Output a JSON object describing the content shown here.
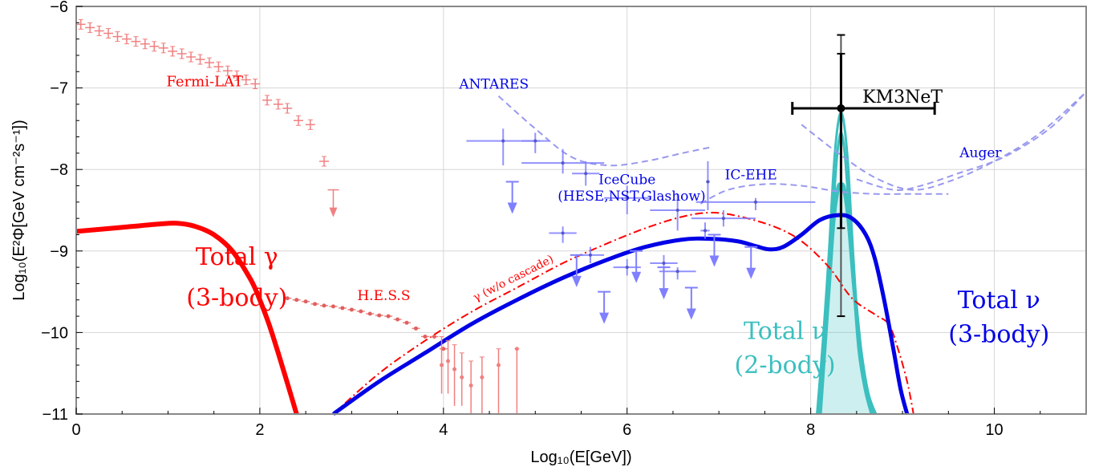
{
  "chart_data": {
    "type": "line",
    "xlabel": "Log₁₀(E[GeV])",
    "ylabel": "Log₁₀(E²Φ[GeV cm⁻²s⁻¹])",
    "xlim": [
      0,
      11
    ],
    "ylim": [
      -11,
      -6
    ],
    "x_ticks": [
      "0",
      "2",
      "4",
      "6",
      "8",
      "10"
    ],
    "y_ticks": [
      "−6",
      "−7",
      "−8",
      "−9",
      "−10",
      "−11"
    ],
    "grid": true,
    "colors": {
      "gamma": "#ff0000",
      "nu3": "#0000e6",
      "nu2": "#3cbfbf",
      "fermi": "#f08080",
      "neutrino_data": "#7f7fff",
      "limits": "#9999ee",
      "km3net": "#000000"
    },
    "annotations": [
      {
        "id": "fermi",
        "text": "Fermi-LAT",
        "x": 1.4,
        "y": -6.98
      },
      {
        "id": "hess",
        "text": "H.E.S.S",
        "x": 3.35,
        "y": -9.6
      },
      {
        "id": "antares",
        "text": "ANTARES",
        "x": 4.55,
        "y": -7.01
      },
      {
        "id": "icecube1",
        "text": "IceCube",
        "x": 6.0,
        "y": -8.18
      },
      {
        "id": "icecube2",
        "text": "(HESE,NST,Glashow)",
        "x": 6.05,
        "y": -8.38
      },
      {
        "id": "icehe",
        "text": "IC-EHE",
        "x": 7.35,
        "y": -8.12
      },
      {
        "id": "auger",
        "text": "Auger",
        "x": 9.85,
        "y": -7.85
      },
      {
        "id": "km3net",
        "text": "KM3NeT",
        "x": 9.0,
        "y": -7.18
      },
      {
        "id": "gcascade",
        "text": "γ (w/o cascade)",
        "x": 4.35,
        "y": -9.62
      },
      {
        "id": "tg1",
        "text": "Total γ",
        "x": 1.75,
        "y": -9.17
      },
      {
        "id": "tg2",
        "text": "(3-body)",
        "x": 1.75,
        "y": -9.67
      },
      {
        "id": "tn31",
        "text": "Total ν",
        "x": 10.05,
        "y": -9.7
      },
      {
        "id": "tn32",
        "text": "(3-body)",
        "x": 10.05,
        "y": -10.12
      },
      {
        "id": "tn21",
        "text": "Total ν",
        "x": 7.72,
        "y": -10.08
      },
      {
        "id": "tn22",
        "text": "(2-body)",
        "x": 7.72,
        "y": -10.5
      }
    ],
    "series": [
      {
        "id": "total_gamma_3body",
        "x": [
          0,
          0.3,
          0.6,
          0.9,
          1.1,
          1.3,
          1.5,
          1.7,
          1.9,
          2.0,
          2.1,
          2.2,
          2.3,
          2.4
        ],
        "y": [
          -8.76,
          -8.73,
          -8.7,
          -8.67,
          -8.66,
          -8.7,
          -8.8,
          -9.0,
          -9.35,
          -9.6,
          -9.9,
          -10.25,
          -10.62,
          -11.0
        ]
      },
      {
        "id": "total_nu_3body",
        "x": [
          2.8,
          3.3,
          3.8,
          4.3,
          4.8,
          5.3,
          5.8,
          6.2,
          6.6,
          6.9,
          7.2,
          7.4,
          7.55,
          7.7,
          7.9,
          8.1,
          8.3,
          8.45,
          8.6,
          8.7,
          8.8,
          8.9,
          8.98,
          9.05
        ],
        "y": [
          -11.0,
          -10.6,
          -10.25,
          -9.9,
          -9.6,
          -9.33,
          -9.1,
          -8.95,
          -8.86,
          -8.85,
          -8.88,
          -8.94,
          -8.98,
          -8.95,
          -8.8,
          -8.62,
          -8.56,
          -8.6,
          -8.8,
          -9.1,
          -9.6,
          -10.2,
          -10.7,
          -11.0
        ]
      },
      {
        "id": "gamma_wo_cascade",
        "x": [
          2.8,
          3.3,
          3.8,
          4.3,
          4.8,
          5.3,
          5.8,
          6.2,
          6.6,
          6.9,
          7.2,
          7.6,
          7.9,
          8.2,
          8.45,
          8.7,
          8.85,
          8.95,
          9.05,
          9.12
        ],
        "y": [
          -11.0,
          -10.5,
          -10.1,
          -9.75,
          -9.45,
          -9.15,
          -8.9,
          -8.72,
          -8.58,
          -8.53,
          -8.57,
          -8.7,
          -8.88,
          -9.2,
          -9.58,
          -9.78,
          -9.9,
          -10.2,
          -10.6,
          -11.0
        ]
      },
      {
        "id": "total_nu_2body",
        "x": [
          8.1,
          8.15,
          8.2,
          8.25,
          8.3,
          8.33,
          8.36,
          8.41,
          8.47,
          8.54,
          8.62,
          8.7
        ],
        "y": [
          -11.0,
          -10.2,
          -9.4,
          -8.6,
          -8.22,
          -8.2,
          -8.22,
          -8.6,
          -9.4,
          -10.2,
          -10.75,
          -11.0
        ]
      },
      {
        "id": "antares_limit",
        "x": [
          4.6,
          5.0,
          5.4,
          5.8,
          6.2,
          6.6,
          6.9
        ],
        "y": [
          -7.1,
          -7.5,
          -7.85,
          -7.95,
          -7.9,
          -7.8,
          -7.73
        ]
      },
      {
        "id": "ic_ehe_limit",
        "x": [
          6.8,
          7.1,
          7.5,
          7.9,
          8.3,
          8.7,
          9.1,
          9.5
        ],
        "y": [
          -8.42,
          -8.25,
          -8.18,
          -8.2,
          -8.27,
          -8.3,
          -8.3,
          -8.3
        ]
      },
      {
        "id": "auger_limit",
        "x": [
          7.9,
          8.3,
          8.7,
          9.1,
          9.5,
          10.0,
          10.5,
          11.0
        ],
        "y": [
          -7.45,
          -7.8,
          -8.1,
          -8.25,
          -8.15,
          -7.9,
          -7.55,
          -7.05
        ]
      },
      {
        "id": "auger_limit_2",
        "x": [
          8.5,
          8.9,
          9.2,
          9.6,
          10.1,
          10.6,
          11.0
        ],
        "y": [
          -8.12,
          -8.25,
          -8.2,
          -8.05,
          -7.85,
          -7.5,
          -7.05
        ]
      }
    ],
    "fermi_points": [
      {
        "x": 0.05,
        "y": -6.22
      },
      {
        "x": 0.15,
        "y": -6.26
      },
      {
        "x": 0.25,
        "y": -6.3
      },
      {
        "x": 0.35,
        "y": -6.33
      },
      {
        "x": 0.45,
        "y": -6.37
      },
      {
        "x": 0.55,
        "y": -6.4
      },
      {
        "x": 0.65,
        "y": -6.43
      },
      {
        "x": 0.75,
        "y": -6.46
      },
      {
        "x": 0.85,
        "y": -6.49
      },
      {
        "x": 0.95,
        "y": -6.51
      },
      {
        "x": 1.05,
        "y": -6.55
      },
      {
        "x": 1.15,
        "y": -6.58
      },
      {
        "x": 1.25,
        "y": -6.62
      },
      {
        "x": 1.35,
        "y": -6.65
      },
      {
        "x": 1.45,
        "y": -6.69
      },
      {
        "x": 1.55,
        "y": -6.74
      },
      {
        "x": 1.65,
        "y": -6.79
      },
      {
        "x": 1.75,
        "y": -6.85
      },
      {
        "x": 1.85,
        "y": -6.9
      },
      {
        "x": 1.95,
        "y": -6.95
      },
      {
        "x": 2.08,
        "y": -7.15
      },
      {
        "x": 2.2,
        "y": -7.2
      },
      {
        "x": 2.3,
        "y": -7.25
      },
      {
        "x": 2.42,
        "y": -7.4
      },
      {
        "x": 2.55,
        "y": -7.45
      },
      {
        "x": 2.7,
        "y": -7.9
      }
    ],
    "fermi_ul": [
      {
        "x": 2.8,
        "y": -8.25
      }
    ],
    "hess_points": [
      {
        "x": 2.3,
        "y": -9.58
      },
      {
        "x": 2.4,
        "y": -9.6
      },
      {
        "x": 2.5,
        "y": -9.62
      },
      {
        "x": 2.6,
        "y": -9.65
      },
      {
        "x": 2.7,
        "y": -9.67
      },
      {
        "x": 2.8,
        "y": -9.68
      },
      {
        "x": 2.9,
        "y": -9.7
      },
      {
        "x": 3.0,
        "y": -9.72
      },
      {
        "x": 3.1,
        "y": -9.74
      },
      {
        "x": 3.2,
        "y": -9.77
      },
      {
        "x": 3.3,
        "y": -9.79
      },
      {
        "x": 3.4,
        "y": -9.8
      },
      {
        "x": 3.5,
        "y": -9.84
      },
      {
        "x": 3.6,
        "y": -9.88
      },
      {
        "x": 3.7,
        "y": -9.95
      },
      {
        "x": 3.8,
        "y": -10.05
      },
      {
        "x": 3.9,
        "y": -10.05
      },
      {
        "x": 4.0,
        "y": -10.2
      }
    ],
    "hess_scatter": [
      {
        "x": 3.98,
        "y": -10.4,
        "lo": -10.75,
        "hi": -10.05
      },
      {
        "x": 4.05,
        "y": -10.35,
        "lo": -10.75,
        "hi": -10.1
      },
      {
        "x": 4.12,
        "y": -10.45,
        "lo": -10.9,
        "hi": -10.15
      },
      {
        "x": 4.2,
        "y": -10.55,
        "lo": -10.9,
        "hi": -10.25
      },
      {
        "x": 4.3,
        "y": -10.65,
        "lo": -11.0,
        "hi": -10.35
      },
      {
        "x": 4.42,
        "y": -10.55,
        "lo": -11.0,
        "hi": -10.3
      },
      {
        "x": 4.6,
        "y": -10.4,
        "lo": -11.0,
        "hi": -10.2
      },
      {
        "x": 4.8,
        "y": -10.2,
        "lo": -11.0,
        "hi": -10.2
      }
    ],
    "neutrino_points": [
      {
        "x": 4.65,
        "y": -7.65,
        "xerr": 0.4,
        "lo": -7.95,
        "hi": -7.5
      },
      {
        "x": 5.0,
        "y": -7.65,
        "xerr": 0.15,
        "lo": -7.8,
        "hi": -7.55
      },
      {
        "x": 5.3,
        "y": -7.92,
        "xerr": 0.45,
        "lo": -8.05,
        "hi": -7.75
      },
      {
        "x": 5.55,
        "y": -8.05,
        "xerr": 0.15,
        "lo": -8.2,
        "hi": -7.9
      },
      {
        "x": 6.0,
        "y": -8.35,
        "xerr": 0.25,
        "lo": -8.55,
        "hi": -8.2
      },
      {
        "x": 6.55,
        "y": -8.5,
        "xerr": 0.3,
        "lo": -8.75,
        "hi": -8.3
      },
      {
        "x": 7.05,
        "y": -8.6,
        "xerr": 0.35,
        "lo": -8.7,
        "hi": -8.5
      },
      {
        "x": 7.4,
        "y": -8.4,
        "xerr": 0.65,
        "lo": -8.5,
        "hi": -8.35
      },
      {
        "x": 5.3,
        "y": -8.78,
        "xerr": 0.15,
        "lo": -8.9,
        "hi": -8.7
      },
      {
        "x": 5.6,
        "y": -9.05,
        "xerr": 0.15,
        "lo": -9.15,
        "hi": -8.95
      },
      {
        "x": 6.0,
        "y": -9.2,
        "xerr": 0.15,
        "lo": -9.3,
        "hi": -9.1
      },
      {
        "x": 6.4,
        "y": -9.15,
        "xerr": 0.15,
        "lo": -9.25,
        "hi": -9.05
      },
      {
        "x": 6.85,
        "y": -8.75,
        "xerr": 0.05,
        "lo": -8.85,
        "hi": -8.65
      },
      {
        "x": 6.88,
        "y": -8.15,
        "xerr": 0.02,
        "lo": -8.5,
        "hi": -7.9
      },
      {
        "x": 6.55,
        "y": -9.25,
        "xerr": 0.2,
        "lo": -9.35,
        "hi": -9.2
      }
    ],
    "neutrino_ul": [
      {
        "x": 4.75,
        "y": -8.15
      },
      {
        "x": 5.45,
        "y": -9.05
      },
      {
        "x": 5.75,
        "y": -9.5
      },
      {
        "x": 6.1,
        "y": -9.0
      },
      {
        "x": 6.4,
        "y": -9.2
      },
      {
        "x": 6.7,
        "y": -9.45
      },
      {
        "x": 7.35,
        "y": -8.95
      },
      {
        "x": 6.95,
        "y": -8.8
      }
    ],
    "km3net_point": {
      "x": 8.33,
      "y": -7.25,
      "xlo": 7.8,
      "xhi": 9.35,
      "ylo1": -8.72,
      "yhi1": -6.58,
      "ylo2": -9.8,
      "yhi2": -6.35
    }
  }
}
